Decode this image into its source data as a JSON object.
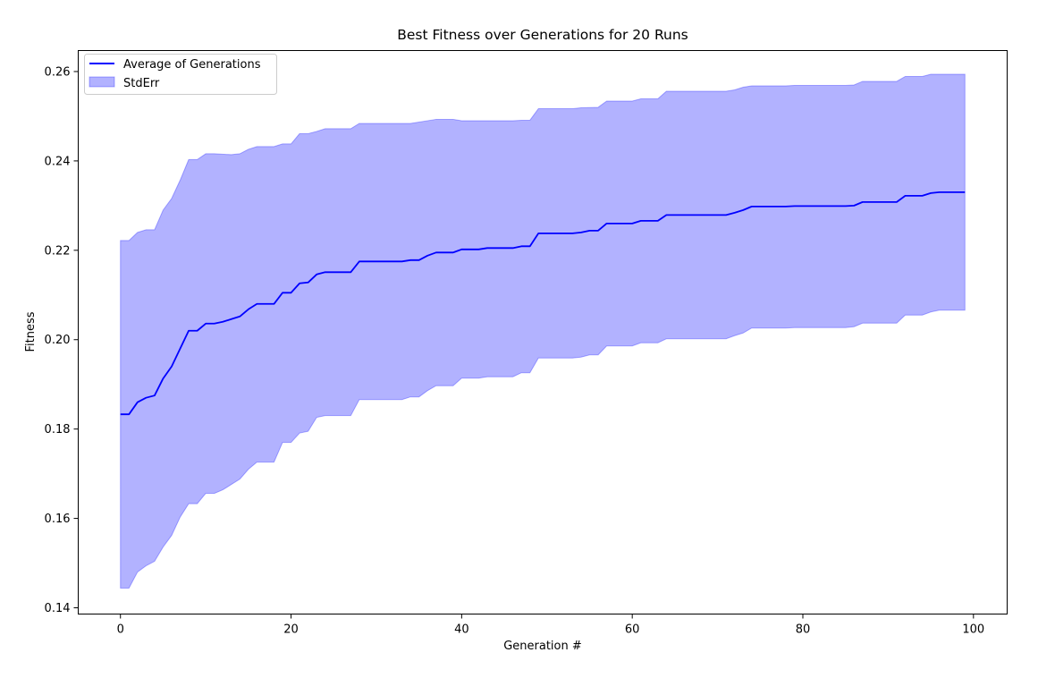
{
  "chart_data": {
    "type": "line",
    "title": "Best Fitness over Generations for 20 Runs",
    "xlabel": "Generation #",
    "ylabel": "Fitness",
    "xlim": [
      -4.95,
      103.95
    ],
    "ylim": [
      0.1386,
      0.2647
    ],
    "xticks": [
      0,
      20,
      40,
      60,
      80,
      100
    ],
    "xtick_labels": [
      "0",
      "20",
      "40",
      "60",
      "80",
      "100"
    ],
    "yticks": [
      0.14,
      0.16,
      0.18,
      0.2,
      0.22,
      0.24,
      0.26
    ],
    "ytick_labels": [
      "0.14",
      "0.16",
      "0.18",
      "0.20",
      "0.22",
      "0.24",
      "0.26"
    ],
    "grid": false,
    "legend_position": "top-left",
    "series": [
      {
        "name": "Average of Generations",
        "kind": "line",
        "color": "#0000ff",
        "points": [
          [
            0,
            0.1833
          ],
          [
            1,
            0.1833
          ],
          [
            2,
            0.186
          ],
          [
            3,
            0.187
          ],
          [
            4,
            0.1875
          ],
          [
            5,
            0.1913
          ],
          [
            6,
            0.194
          ],
          [
            7,
            0.198
          ],
          [
            8,
            0.202
          ],
          [
            9,
            0.202
          ],
          [
            10,
            0.2036
          ],
          [
            11,
            0.2036
          ],
          [
            12,
            0.204
          ],
          [
            13,
            0.2046
          ],
          [
            14,
            0.2052
          ],
          [
            15,
            0.2068
          ],
          [
            16,
            0.208
          ],
          [
            17,
            0.208
          ],
          [
            18,
            0.208
          ],
          [
            19,
            0.2105
          ],
          [
            20,
            0.2105
          ],
          [
            21,
            0.2126
          ],
          [
            22,
            0.2128
          ],
          [
            23,
            0.2146
          ],
          [
            24,
            0.2151
          ],
          [
            27,
            0.2151
          ],
          [
            28,
            0.2175
          ],
          [
            33,
            0.2175
          ],
          [
            34,
            0.2178
          ],
          [
            35,
            0.2178
          ],
          [
            36,
            0.2188
          ],
          [
            37,
            0.2195
          ],
          [
            39,
            0.2195
          ],
          [
            40,
            0.2202
          ],
          [
            42,
            0.2202
          ],
          [
            43,
            0.2205
          ],
          [
            46,
            0.2205
          ],
          [
            47,
            0.2209
          ],
          [
            48,
            0.2209
          ],
          [
            49,
            0.2238
          ],
          [
            53,
            0.2238
          ],
          [
            54,
            0.224
          ],
          [
            55,
            0.2244
          ],
          [
            56,
            0.2244
          ],
          [
            57,
            0.226
          ],
          [
            60,
            0.226
          ],
          [
            61,
            0.2266
          ],
          [
            63,
            0.2266
          ],
          [
            64,
            0.2279
          ],
          [
            71,
            0.2279
          ],
          [
            72,
            0.2284
          ],
          [
            73,
            0.229
          ],
          [
            74,
            0.2298
          ],
          [
            78,
            0.2298
          ],
          [
            79,
            0.2299
          ],
          [
            85,
            0.2299
          ],
          [
            86,
            0.23
          ],
          [
            87,
            0.2308
          ],
          [
            91,
            0.2308
          ],
          [
            92,
            0.2322
          ],
          [
            94,
            0.2322
          ],
          [
            95,
            0.2328
          ],
          [
            96,
            0.233
          ],
          [
            99,
            0.233
          ]
        ]
      },
      {
        "name": "StdErr",
        "kind": "band",
        "color": "#0000ff",
        "fill_alpha": 0.3,
        "upper": [
          [
            0,
            0.2222
          ],
          [
            1,
            0.2222
          ],
          [
            2,
            0.224
          ],
          [
            3,
            0.2246
          ],
          [
            4,
            0.2246
          ],
          [
            5,
            0.229
          ],
          [
            6,
            0.2316
          ],
          [
            7,
            0.2357
          ],
          [
            8,
            0.2403
          ],
          [
            9,
            0.2403
          ],
          [
            10,
            0.2416
          ],
          [
            11,
            0.2416
          ],
          [
            13,
            0.2414
          ],
          [
            14,
            0.2416
          ],
          [
            15,
            0.2426
          ],
          [
            16,
            0.2432
          ],
          [
            18,
            0.2432
          ],
          [
            19,
            0.2438
          ],
          [
            20,
            0.2438
          ],
          [
            21,
            0.2461
          ],
          [
            22,
            0.2461
          ],
          [
            23,
            0.2466
          ],
          [
            24,
            0.2472
          ],
          [
            27,
            0.2472
          ],
          [
            28,
            0.2484
          ],
          [
            33,
            0.2484
          ],
          [
            34,
            0.2484
          ],
          [
            36,
            0.249
          ],
          [
            37,
            0.2493
          ],
          [
            39,
            0.2493
          ],
          [
            40,
            0.249
          ],
          [
            46,
            0.249
          ],
          [
            47,
            0.2491
          ],
          [
            48,
            0.2491
          ],
          [
            49,
            0.2517
          ],
          [
            53,
            0.2517
          ],
          [
            54,
            0.2519
          ],
          [
            56,
            0.252
          ],
          [
            57,
            0.2534
          ],
          [
            60,
            0.2534
          ],
          [
            61,
            0.2539
          ],
          [
            63,
            0.2539
          ],
          [
            64,
            0.2556
          ],
          [
            71,
            0.2556
          ],
          [
            72,
            0.2559
          ],
          [
            73,
            0.2565
          ],
          [
            74,
            0.2568
          ],
          [
            78,
            0.2568
          ],
          [
            79,
            0.2569
          ],
          [
            85,
            0.2569
          ],
          [
            86,
            0.257
          ],
          [
            87,
            0.2578
          ],
          [
            91,
            0.2578
          ],
          [
            92,
            0.2589
          ],
          [
            94,
            0.2589
          ],
          [
            95,
            0.2594
          ],
          [
            99,
            0.2594
          ]
        ],
        "lower": [
          [
            0,
            0.1444
          ],
          [
            1,
            0.1444
          ],
          [
            2,
            0.148
          ],
          [
            3,
            0.1494
          ],
          [
            4,
            0.1504
          ],
          [
            5,
            0.1536
          ],
          [
            6,
            0.1562
          ],
          [
            7,
            0.1603
          ],
          [
            8,
            0.1633
          ],
          [
            9,
            0.1633
          ],
          [
            10,
            0.1656
          ],
          [
            11,
            0.1656
          ],
          [
            12,
            0.1664
          ],
          [
            13,
            0.1676
          ],
          [
            14,
            0.1688
          ],
          [
            15,
            0.171
          ],
          [
            16,
            0.1726
          ],
          [
            18,
            0.1726
          ],
          [
            19,
            0.177
          ],
          [
            20,
            0.177
          ],
          [
            21,
            0.1791
          ],
          [
            22,
            0.1795
          ],
          [
            23,
            0.1826
          ],
          [
            24,
            0.183
          ],
          [
            27,
            0.183
          ],
          [
            28,
            0.1866
          ],
          [
            33,
            0.1866
          ],
          [
            34,
            0.1872
          ],
          [
            35,
            0.1872
          ],
          [
            36,
            0.1886
          ],
          [
            37,
            0.1897
          ],
          [
            39,
            0.1897
          ],
          [
            40,
            0.1914
          ],
          [
            42,
            0.1914
          ],
          [
            43,
            0.1917
          ],
          [
            46,
            0.1917
          ],
          [
            47,
            0.1926
          ],
          [
            48,
            0.1926
          ],
          [
            49,
            0.1959
          ],
          [
            53,
            0.1959
          ],
          [
            54,
            0.1961
          ],
          [
            55,
            0.1966
          ],
          [
            56,
            0.1966
          ],
          [
            57,
            0.1986
          ],
          [
            60,
            0.1986
          ],
          [
            61,
            0.1993
          ],
          [
            63,
            0.1993
          ],
          [
            64,
            0.2002
          ],
          [
            71,
            0.2002
          ],
          [
            72,
            0.2009
          ],
          [
            73,
            0.2015
          ],
          [
            74,
            0.2026
          ],
          [
            78,
            0.2026
          ],
          [
            79,
            0.2027
          ],
          [
            85,
            0.2027
          ],
          [
            86,
            0.2029
          ],
          [
            87,
            0.2037
          ],
          [
            91,
            0.2037
          ],
          [
            92,
            0.2055
          ],
          [
            94,
            0.2055
          ],
          [
            95,
            0.2062
          ],
          [
            96,
            0.2066
          ],
          [
            99,
            0.2066
          ]
        ]
      }
    ]
  }
}
